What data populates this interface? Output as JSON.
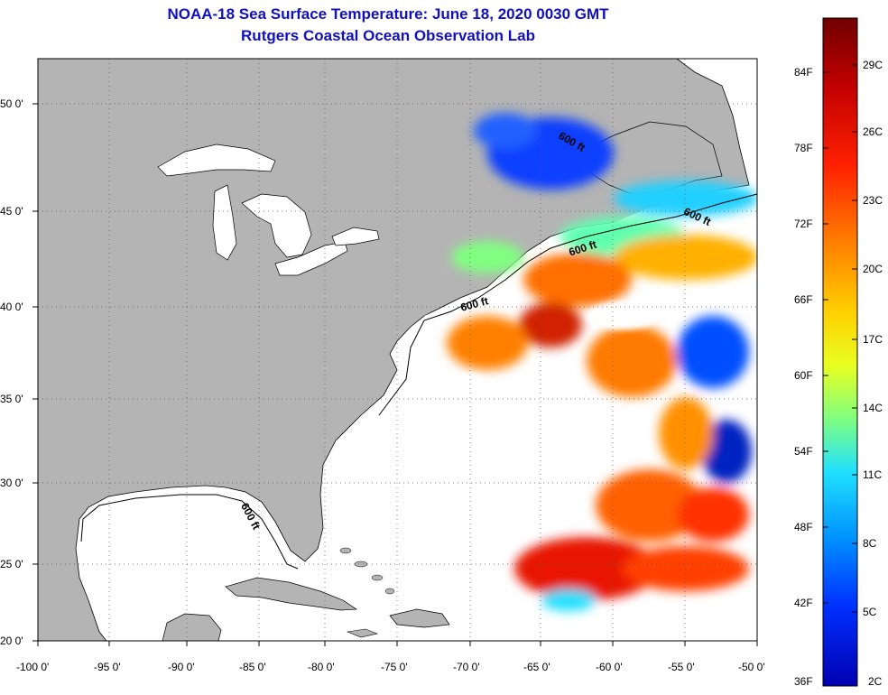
{
  "title_line1": "NOAA-18 Sea Surface Temperature:  June 18, 2020 0030 GMT",
  "title_line2": "Rutgers Coastal Ocean Observation Lab",
  "lon_labels": [
    "-100 0'",
    "-95 0'",
    "-90 0'",
    "-85 0'",
    "-80 0'",
    "-75 0'",
    "-70 0'",
    "-65 0'",
    "-60 0'",
    "-55 0'",
    "-50 0'"
  ],
  "lat_labels": [
    "50 0'",
    "45 0'",
    "40 0'",
    "35 0'",
    "30 0'",
    "25 0'",
    "20 0'"
  ],
  "contour_labels": [
    "600 ft",
    "600 ft",
    "600 ft",
    "600 ft",
    "600 ft"
  ],
  "colorbar": {
    "fahrenheit": [
      "84F",
      "78F",
      "72F",
      "66F",
      "60F",
      "54F",
      "48F",
      "42F",
      "36F"
    ],
    "celsius": [
      "29C",
      "26C",
      "23C",
      "20C",
      "17C",
      "14C",
      "11C",
      "8C",
      "5C",
      "2C"
    ],
    "colors": [
      "#700000",
      "#c00000",
      "#ff2000",
      "#ff7a00",
      "#ffd000",
      "#e8ff20",
      "#80ff80",
      "#20e0ff",
      "#0090ff",
      "#0030ff",
      "#0000b0"
    ]
  },
  "colors": {
    "land": "#b4b4b4",
    "ocean_cloud": "#ffffff",
    "title": "#1010c0"
  }
}
